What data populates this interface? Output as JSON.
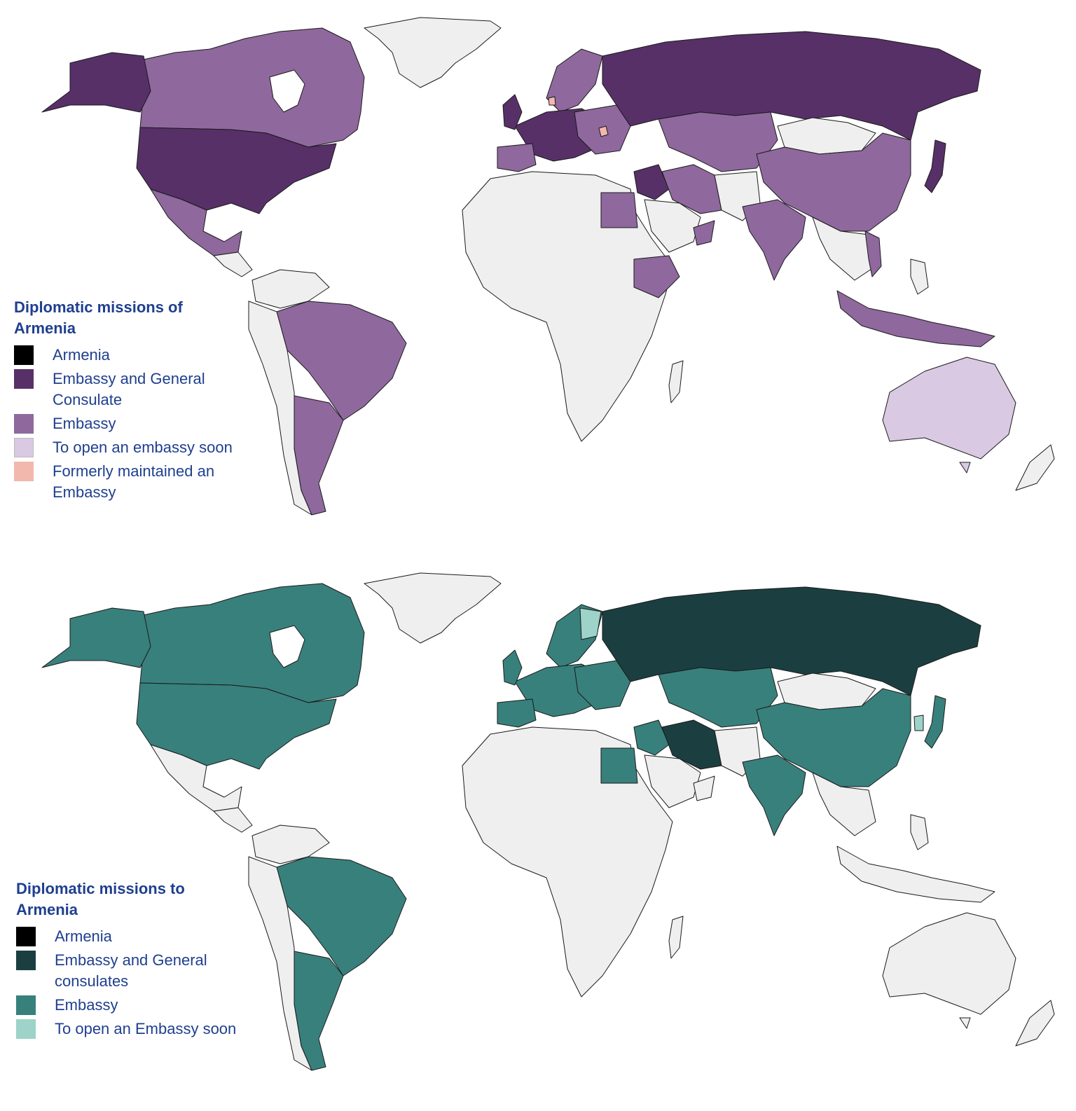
{
  "maps": [
    {
      "title": "Diplomatic missions of Armenia",
      "legend": [
        {
          "label": "Armenia",
          "color": "#000000"
        },
        {
          "label": "Embassy and General Consulate",
          "color": "#573068"
        },
        {
          "label": "Embassy",
          "color": "#8f689e"
        },
        {
          "label": "To open an embassy soon",
          "color": "#d9c9e2"
        },
        {
          "label": "Formerly maintained an Embassy",
          "color": "#f2b8ad"
        }
      ]
    },
    {
      "title": "Diplomatic missions to Armenia",
      "legend": [
        {
          "label": "Armenia",
          "color": "#000000"
        },
        {
          "label": "Embassy and General consulates",
          "color": "#1b3f40"
        },
        {
          "label": "Embassy",
          "color": "#38807c"
        },
        {
          "label": "To open an Embassy soon",
          "color": "#9dd3c9"
        }
      ]
    }
  ],
  "base_land_color": "#efefef"
}
